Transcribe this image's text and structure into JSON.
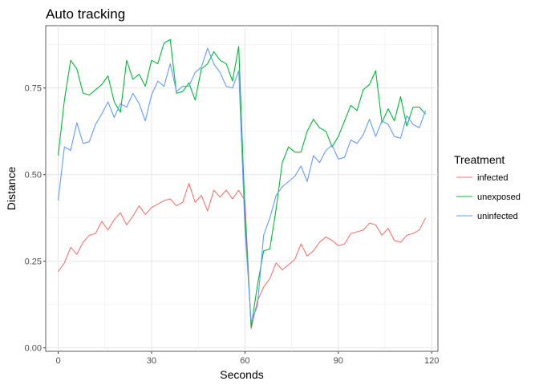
{
  "chart_data": {
    "type": "line",
    "title": "Auto tracking",
    "xlabel": "Seconds",
    "ylabel": "Distance",
    "xlim": [
      -4,
      122
    ],
    "ylim": [
      -0.01,
      0.93
    ],
    "x_ticks": [
      0,
      30,
      60,
      90,
      120
    ],
    "y_ticks": [
      0.0,
      0.25,
      0.5,
      0.75
    ],
    "y_tick_labels": [
      "0.00",
      "0.25",
      "0.50",
      "0.75"
    ],
    "grid": true,
    "legend": {
      "title": "Treatment",
      "position": "right"
    },
    "x": [
      0,
      2,
      4,
      6,
      8,
      10,
      12,
      14,
      16,
      18,
      20,
      22,
      24,
      26,
      28,
      30,
      32,
      34,
      36,
      38,
      40,
      42,
      44,
      46,
      48,
      50,
      52,
      54,
      56,
      58,
      60,
      62,
      64,
      66,
      68,
      70,
      72,
      74,
      76,
      78,
      80,
      82,
      84,
      86,
      88,
      90,
      92,
      94,
      96,
      98,
      100,
      102,
      104,
      106,
      108,
      110,
      112,
      114,
      116,
      118
    ],
    "series": [
      {
        "name": "infected",
        "color": "#F8766D",
        "values": [
          0.22,
          0.245,
          0.29,
          0.27,
          0.305,
          0.325,
          0.33,
          0.365,
          0.34,
          0.37,
          0.39,
          0.355,
          0.38,
          0.41,
          0.385,
          0.405,
          0.415,
          0.425,
          0.43,
          0.41,
          0.42,
          0.475,
          0.42,
          0.44,
          0.395,
          0.455,
          0.435,
          0.455,
          0.43,
          0.455,
          0.425,
          0.055,
          0.135,
          0.175,
          0.2,
          0.245,
          0.225,
          0.24,
          0.255,
          0.3,
          0.265,
          0.28,
          0.305,
          0.32,
          0.31,
          0.295,
          0.3,
          0.33,
          0.335,
          0.34,
          0.36,
          0.355,
          0.325,
          0.345,
          0.31,
          0.305,
          0.325,
          0.33,
          0.34,
          0.375
        ]
      },
      {
        "name": "unexposed",
        "color": "#00BA38",
        "values": [
          0.555,
          0.715,
          0.83,
          0.805,
          0.735,
          0.73,
          0.745,
          0.76,
          0.785,
          0.71,
          0.68,
          0.83,
          0.775,
          0.79,
          0.755,
          0.83,
          0.82,
          0.88,
          0.89,
          0.735,
          0.74,
          0.765,
          0.715,
          0.805,
          0.82,
          0.855,
          0.83,
          0.82,
          0.77,
          0.87,
          0.39,
          0.06,
          0.18,
          0.28,
          0.285,
          0.4,
          0.535,
          0.58,
          0.565,
          0.565,
          0.625,
          0.66,
          0.635,
          0.625,
          0.58,
          0.61,
          0.655,
          0.7,
          0.685,
          0.745,
          0.76,
          0.8,
          0.65,
          0.69,
          0.655,
          0.725,
          0.64,
          0.695,
          0.695,
          0.675
        ]
      },
      {
        "name": "uninfected",
        "color": "#619CFF",
        "values": [
          0.425,
          0.58,
          0.57,
          0.65,
          0.59,
          0.595,
          0.645,
          0.675,
          0.71,
          0.665,
          0.705,
          0.695,
          0.735,
          0.705,
          0.655,
          0.73,
          0.77,
          0.755,
          0.82,
          0.74,
          0.755,
          0.755,
          0.795,
          0.81,
          0.865,
          0.82,
          0.795,
          0.755,
          0.75,
          0.8,
          0.345,
          0.075,
          0.12,
          0.325,
          0.375,
          0.44,
          0.465,
          0.48,
          0.495,
          0.525,
          0.48,
          0.555,
          0.535,
          0.57,
          0.585,
          0.545,
          0.55,
          0.6,
          0.59,
          0.615,
          0.66,
          0.61,
          0.655,
          0.645,
          0.61,
          0.605,
          0.67,
          0.645,
          0.635,
          0.685
        ]
      }
    ]
  }
}
